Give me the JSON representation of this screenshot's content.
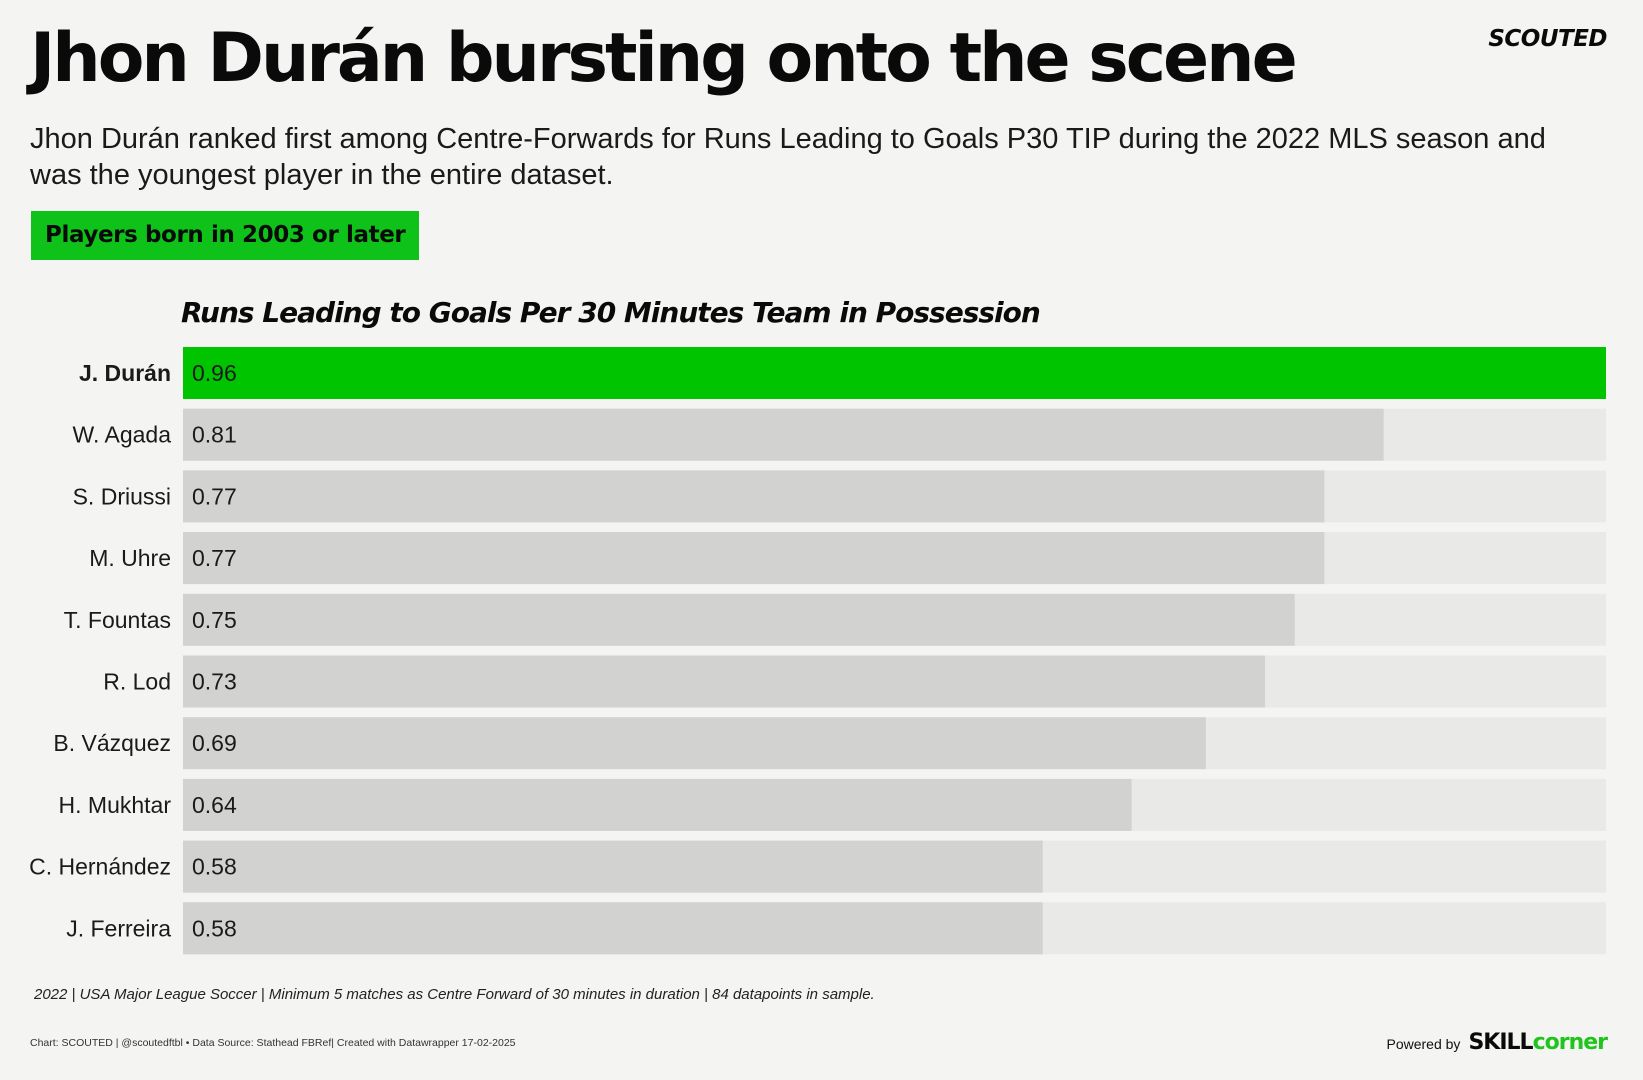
{
  "header": {
    "title": "Jhon Durán bursting onto the scene",
    "brand": "SCOUTED",
    "subtitle": "Jhon Durán ranked first among Centre-Forwards for Runs Leading to Goals P30 TIP during the 2022 MLS season and was the youngest player in the entire dataset.",
    "badge": "Players born in 2003 or later"
  },
  "colors": {
    "highlight": "#00c400",
    "bar": "#d2d2d0",
    "track": "#e9e9e7",
    "badge": "#0fc21a"
  },
  "chart_data": {
    "type": "bar",
    "orientation": "horizontal",
    "title": "Runs Leading to Goals Per 30 Minutes Team in Possession",
    "categories": [
      "J. Durán",
      "W. Agada",
      "S. Driussi",
      "M. Uhre",
      "T. Fountas",
      "R. Lod",
      "B. Vázquez",
      "H. Mukhtar",
      "C. Hernández",
      "J. Ferreira"
    ],
    "values": [
      0.96,
      0.81,
      0.77,
      0.77,
      0.75,
      0.73,
      0.69,
      0.64,
      0.58,
      0.58
    ],
    "value_labels": [
      "0.96",
      "0.81",
      "0.77",
      "0.77",
      "0.75",
      "0.73",
      "0.69",
      "0.64",
      "0.58",
      "0.58"
    ],
    "highlighted": [
      "J. Durán"
    ],
    "xlim": [
      0,
      0.96
    ],
    "grid": false
  },
  "footer": {
    "note": "2022 | USA Major League Soccer | Minimum 5 matches as Centre Forward of 30 minutes in duration | 84 datapoints in sample.",
    "credits": "Chart: SCOUTED | @scoutedftbl • Data Source: Stathead FBRef| Created with Datawrapper 17-02-2025",
    "powered_by": "Powered by",
    "logo_part1": "SKILL",
    "logo_part2": "corner"
  }
}
